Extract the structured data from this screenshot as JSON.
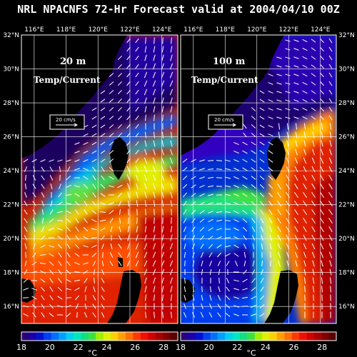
{
  "title": "NRL NPACNFS 72-Hr Forecast valid at 2004/04/10 00Z",
  "lon_labels": [
    "116°E",
    "118°E",
    "120°E",
    "122°E",
    "124°E"
  ],
  "lat_labels": [
    "32°N",
    "30°N",
    "28°N",
    "26°N",
    "24°N",
    "22°N",
    "20°N",
    "18°N",
    "16°N"
  ],
  "panels": [
    {
      "depth": "20 m",
      "field": "Temp/Current",
      "scale": "20 cm/s"
    },
    {
      "depth": "100 m",
      "field": "Temp/Current",
      "scale": "20 cm/s"
    }
  ],
  "colorbar": {
    "ticks": [
      "18",
      "20",
      "22",
      "24",
      "26",
      "28"
    ],
    "unit": "°C",
    "range": [
      18,
      29
    ],
    "colors": [
      "#2a007a",
      "#1b00a8",
      "#0010d0",
      "#0040f0",
      "#0070ff",
      "#00a0ff",
      "#00d0f0",
      "#00e8c0",
      "#10e080",
      "#40e040",
      "#a0f000",
      "#e0f000",
      "#ffd000",
      "#ffa000",
      "#ff7000",
      "#ff3800",
      "#f01000",
      "#d00000",
      "#a80000",
      "#800000",
      "#5a0000"
    ]
  },
  "map_data": {
    "lon_range": [
      115,
      125
    ],
    "lat_range": [
      15,
      32
    ],
    "surface_20m": "warm water (26-28 °C) in South China Sea and Kuroshio; cold coastal water (18-20 °C) along the China coast north of 25°N",
    "subsurface_100m": "cooler water (19-22 °C) in the South China Sea; warm Kuroshio core (26-28 °C) east of Taiwan and Luzon"
  }
}
